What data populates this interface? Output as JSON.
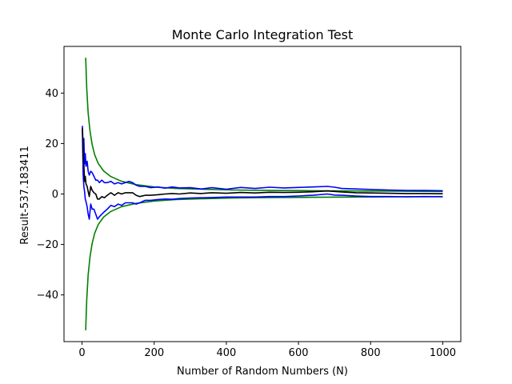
{
  "chart_data": {
    "type": "line",
    "title": "Monte Carlo Integration Test",
    "xlabel": "Number of Random Numbers (N)",
    "ylabel": "Result-537.183411",
    "xlim": [
      -50,
      1050
    ],
    "ylim": [
      -58.5,
      58.5
    ],
    "xticks": [
      0,
      200,
      400,
      600,
      800,
      1000
    ],
    "xtick_labels": [
      "0",
      "200",
      "400",
      "600",
      "800",
      "1000"
    ],
    "yticks": [
      -40,
      -20,
      0,
      20,
      40
    ],
    "ytick_labels": [
      "−40",
      "−20",
      "0",
      "20",
      "40"
    ],
    "grid": false,
    "series": [
      {
        "color": "#008000",
        "x": [
          10,
          13,
          17,
          22,
          28,
          35,
          45,
          60,
          80,
          110,
          150,
          200,
          260,
          330,
          420,
          520,
          640,
          760,
          880,
          1000
        ],
        "y": [
          54,
          42,
          32,
          25,
          19.6,
          15.6,
          12.1,
          9.1,
          6.9,
          5.0,
          3.7,
          2.8,
          2.2,
          1.9,
          1.6,
          1.4,
          1.3,
          1.2,
          1.1,
          1.0
        ]
      },
      {
        "color": "#008000",
        "x": [
          10,
          13,
          17,
          22,
          28,
          35,
          45,
          60,
          80,
          110,
          150,
          200,
          260,
          330,
          420,
          520,
          640,
          760,
          880,
          1000
        ],
        "y": [
          -54,
          -42,
          -32,
          -25,
          -19.6,
          -15.6,
          -12.1,
          -9.1,
          -6.9,
          -5.0,
          -3.7,
          -2.8,
          -2.2,
          -1.9,
          -1.6,
          -1.4,
          -1.3,
          -1.2,
          -1.1,
          -1.0
        ]
      },
      {
        "color": "#0000ff",
        "x": [
          1,
          3,
          5,
          7,
          9,
          11,
          14,
          17,
          20,
          24,
          28,
          33,
          38,
          43,
          48,
          55,
          62,
          70,
          80,
          90,
          100,
          110,
          120,
          130,
          140,
          150,
          160,
          175,
          190,
          210,
          230,
          250,
          270,
          300,
          330,
          360,
          400,
          440,
          480,
          520,
          560,
          600,
          640,
          680,
          700,
          720,
          760,
          800,
          850,
          900,
          950,
          1000
        ],
        "y": [
          27,
          18,
          22,
          12,
          16,
          11,
          13,
          9,
          7.5,
          9,
          8.5,
          7,
          5.5,
          5.5,
          4.5,
          5.5,
          4.5,
          4.5,
          5.0,
          4.0,
          4.5,
          4.0,
          4.5,
          5.0,
          4.5,
          3.5,
          3.0,
          3.0,
          2.5,
          2.8,
          2.3,
          2.8,
          2.4,
          2.5,
          2.0,
          2.5,
          1.9,
          2.6,
          2.2,
          2.7,
          2.4,
          2.6,
          2.8,
          3.0,
          2.7,
          2.2,
          2.0,
          1.8,
          1.6,
          1.4,
          1.4,
          1.3
        ]
      },
      {
        "color": "#0000ff",
        "x": [
          1,
          3,
          5,
          7,
          9,
          11,
          14,
          17,
          20,
          24,
          28,
          33,
          38,
          43,
          48,
          55,
          62,
          70,
          80,
          90,
          100,
          110,
          120,
          130,
          140,
          150,
          160,
          175,
          190,
          210,
          230,
          250,
          270,
          300,
          330,
          360,
          400,
          440,
          480,
          520,
          560,
          600,
          640,
          680,
          700,
          720,
          760,
          800,
          850,
          900,
          950,
          1000
        ],
        "y": [
          26,
          8,
          3,
          1,
          -2,
          -3,
          -5,
          -8,
          -10,
          -4,
          -6,
          -6,
          -8,
          -10,
          -9,
          -8,
          -7,
          -6,
          -4.5,
          -5,
          -4,
          -4.5,
          -3.5,
          -3.5,
          -3.5,
          -4,
          -3.5,
          -2.5,
          -2.5,
          -2.2,
          -2.0,
          -2.1,
          -1.8,
          -1.6,
          -1.5,
          -1.4,
          -1.2,
          -1.2,
          -1.2,
          -1.0,
          -1.0,
          -0.8,
          -0.5,
          0.0,
          -0.4,
          -0.5,
          -0.8,
          -1.0,
          -1.0,
          -1.1,
          -1.0,
          -1.1
        ]
      },
      {
        "color": "#000000",
        "x": [
          1,
          3,
          5,
          7,
          9,
          11,
          14,
          17,
          20,
          24,
          28,
          33,
          38,
          43,
          48,
          55,
          62,
          70,
          80,
          90,
          100,
          110,
          120,
          130,
          140,
          150,
          160,
          175,
          190,
          210,
          230,
          250,
          270,
          300,
          330,
          360,
          400,
          440,
          480,
          520,
          560,
          600,
          640,
          680,
          700,
          720,
          760,
          800,
          850,
          900,
          950,
          1000
        ],
        "y": [
          26,
          15,
          12,
          5,
          7,
          4,
          3,
          1,
          -1,
          3,
          1.5,
          0.5,
          0,
          -2,
          -2,
          -1,
          -1.5,
          -0.5,
          0.5,
          -0.5,
          0.5,
          0,
          0.5,
          0.5,
          0.5,
          -0.5,
          -1.0,
          -0.5,
          -0.5,
          -0.3,
          0.0,
          0.2,
          0.0,
          0.4,
          0.2,
          0.5,
          0.3,
          0.6,
          0.4,
          0.7,
          0.6,
          0.7,
          0.9,
          1.2,
          1.0,
          0.8,
          0.5,
          0.4,
          0.3,
          0.2,
          0.2,
          0.1
        ]
      }
    ]
  }
}
